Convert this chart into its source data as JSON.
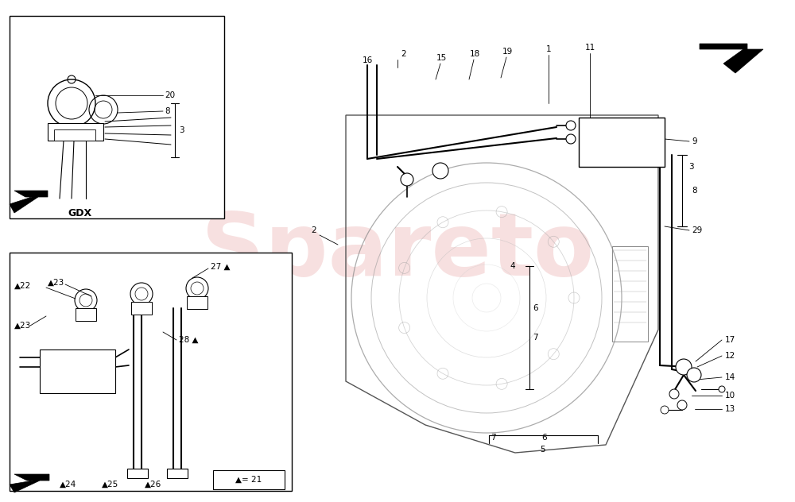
{
  "bg_color": "#ffffff",
  "line_color": "#000000",
  "watermark_text": "Spareto",
  "fig_width": 10.0,
  "fig_height": 6.32,
  "dpi": 100,
  "label_fontsize": 7.5,
  "gdx_label": "GDX",
  "legend_label": "▲= 21"
}
